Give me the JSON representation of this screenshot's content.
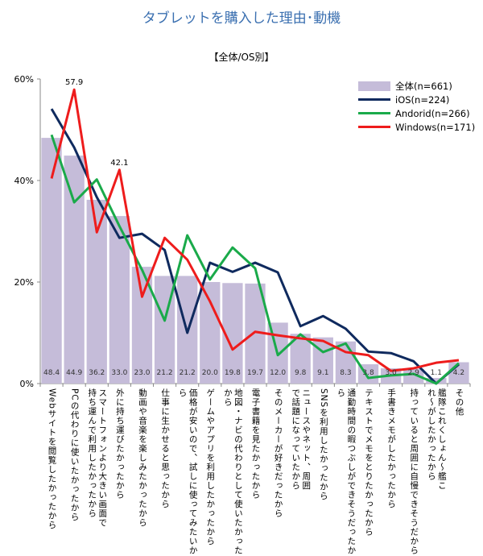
{
  "chart_data": {
    "type": "bar+line",
    "title": "タブレットを購入した理由･動機",
    "subtitle": "【全体/OS別】",
    "ylim": [
      0,
      60
    ],
    "yticks": [
      "0%",
      "20%",
      "40%",
      "60%"
    ],
    "grid": false,
    "legend_position": "top-right",
    "categories": [
      "Webサイトを閲覧したかったから",
      "PCの代わりに使いたかったから",
      "スマートフォンより大きい画面で\n持ち運んで利用したかったから",
      "外に持ち運びたかったから",
      "動画や音楽を楽しみたかったから",
      "仕事に生かせると思ったから",
      "価格が安いので、試しに使ってみたいから",
      "ゲームやアプリを利用したかったから",
      "地図・ナビの代わりとして使いたかったから",
      "電子書籍を見たかったから",
      "そのメーカーが好きだったから",
      "ニュースやネット、周囲\nで話題になっていたから",
      "SNSを利用したかったから",
      "通勤時間の暇つぶしができそうだったから",
      "テキストでメモをとりたかったから",
      "手書きメモがしたかったから",
      "持っていると周囲に自慢できそうだから",
      "艦隊これくしょん～艦こ\nれ～がしたかったから",
      "その他"
    ],
    "series": [
      {
        "name": "全体(n=661)",
        "type": "bar",
        "color": "#c5bcd9",
        "values": [
          48.4,
          44.9,
          36.2,
          33.0,
          23.0,
          21.2,
          21.2,
          20.0,
          19.8,
          19.7,
          12.0,
          9.8,
          9.1,
          8.3,
          3.8,
          3.0,
          2.9,
          1.1,
          4.2
        ],
        "labels": [
          "48.4",
          "44.9",
          "36.2",
          "33.0",
          "23.0",
          "21.2",
          "21.2",
          "20.0",
          "19.8",
          "19.7",
          "12.0",
          "9.8",
          "9.1",
          "8.3",
          "3.8",
          "3.0",
          "2.9",
          "1.1",
          "4.2"
        ]
      },
      {
        "name": "iOS(n=224)",
        "type": "line",
        "color": "#0f2a5e",
        "values": [
          54.1,
          46.5,
          36.7,
          28.7,
          29.5,
          26.3,
          10.0,
          23.8,
          22.0,
          23.8,
          21.9,
          11.3,
          13.3,
          10.8,
          6.3,
          6.0,
          4.4,
          0.0,
          3.8
        ]
      },
      {
        "name": "Andorid(n=266)",
        "type": "line",
        "color": "#1aaa4a",
        "values": [
          49.0,
          35.7,
          40.2,
          31.0,
          22.4,
          12.4,
          29.2,
          20.5,
          26.8,
          22.7,
          5.6,
          9.7,
          6.2,
          7.9,
          1.1,
          1.6,
          1.9,
          0.0,
          4.0
        ]
      },
      {
        "name": "Windows(n=171)",
        "type": "line",
        "color": "#ee1c1c",
        "values": [
          40.4,
          57.9,
          29.8,
          42.1,
          17.1,
          28.7,
          24.4,
          16.2,
          6.7,
          10.2,
          9.5,
          8.9,
          8.4,
          6.2,
          5.6,
          2.5,
          3.0,
          4.1,
          4.6
        ]
      }
    ],
    "annotations": [
      {
        "series": "Windows(n=171)",
        "category_index": 1,
        "text": "57.9"
      },
      {
        "series": "Windows(n=171)",
        "category_index": 3,
        "text": "42.1"
      }
    ]
  }
}
